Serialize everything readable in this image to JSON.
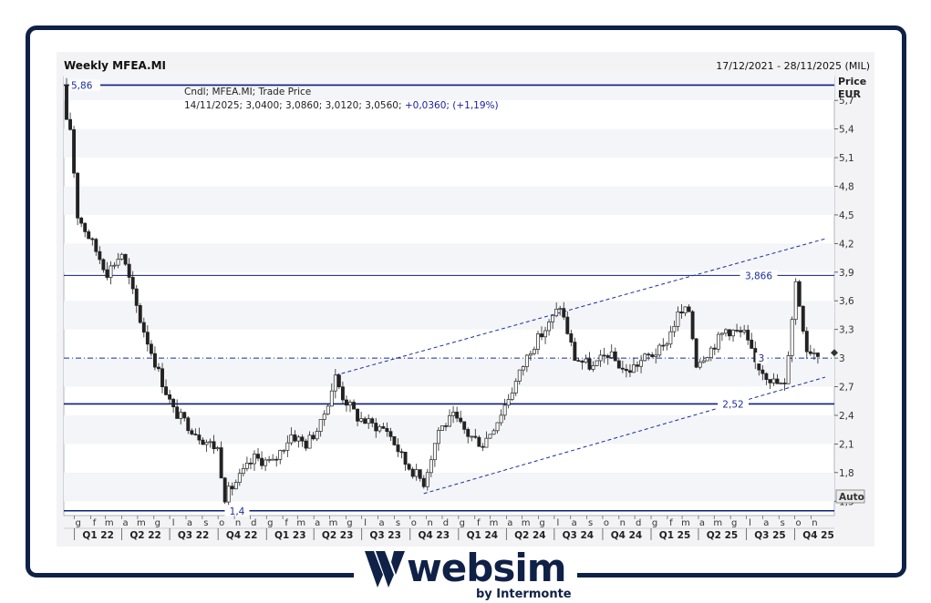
{
  "header": {
    "title": "Weekly MFEA.MI",
    "date_range": "17/12/2021 - 28/11/2025 (MIL)",
    "legend_line1": "Cndl; MFEA.MI; Trade Price",
    "legend_line2_prefix": "14/11/2025; 3,0400; 3,0860; 3,0120; 3,0560; ",
    "legend_line2_change": "+0,0360; (+1,19%)"
  },
  "axis": {
    "price_label": "Price",
    "currency_label": "EUR",
    "auto_label": "Auto",
    "y_ticks": [
      "5,7",
      "5,4",
      "5,1",
      "4,8",
      "4,5",
      "4,2",
      "3,9",
      "3,6",
      "3,3",
      "3",
      "2,7",
      "2,4",
      "2,1",
      "1,8",
      "1,5"
    ],
    "month_letters": [
      "g",
      "f",
      "m",
      "a",
      "m",
      "g",
      "l",
      "a",
      "s",
      "o",
      "n",
      "d",
      "g",
      "f",
      "m",
      "a",
      "m",
      "g",
      "l",
      "a",
      "s",
      "o",
      "n",
      "d",
      "g",
      "f",
      "m",
      "a",
      "m",
      "g",
      "l",
      "a",
      "s",
      "o",
      "n",
      "d",
      "g",
      "f",
      "m",
      "a",
      "m",
      "g",
      "l",
      "a",
      "s",
      "o",
      "n"
    ],
    "quarters": [
      "Q1 22",
      "Q2 22",
      "Q3 22",
      "Q4 22",
      "Q1 23",
      "Q2 23",
      "Q3 23",
      "Q4 23",
      "Q1 24",
      "Q2 24",
      "Q3 24",
      "Q4 24",
      "Q1 25",
      "Q2 25",
      "Q3 25",
      "Q4 25"
    ]
  },
  "chart_data": {
    "type": "candlestick",
    "title": "Weekly MFEA.MI",
    "ylabel": "Price EUR",
    "ylim": [
      1.35,
      5.95
    ],
    "date_range": [
      "17/12/2021",
      "28/11/2025"
    ],
    "last_candle": {
      "date": "14/11/2025",
      "open": 3.04,
      "high": 3.086,
      "low": 3.012,
      "close": 3.056,
      "change": 0.036,
      "change_pct": 1.19
    },
    "levels": [
      {
        "label": "5,86",
        "value": 5.86
      },
      {
        "label": "3,866",
        "value": 3.866
      },
      {
        "label": "3",
        "value": 3.0
      },
      {
        "label": "2,52",
        "value": 2.52
      },
      {
        "label": "1,4",
        "value": 1.4
      }
    ],
    "channel": {
      "upper": [
        {
          "date": "2023-05-12",
          "value": 2.82
        },
        {
          "date": "2025-11-28",
          "value": 4.25
        }
      ],
      "lower": [
        {
          "date": "2023-10-27",
          "value": 1.58
        },
        {
          "date": "2025-11-28",
          "value": 2.8
        }
      ]
    },
    "close_anchors": [
      [
        "2021-12-17",
        5.86
      ],
      [
        "2022-01-07",
        4.5
      ],
      [
        "2022-02-04",
        4.2
      ],
      [
        "2022-03-04",
        3.9
      ],
      [
        "2022-04-01",
        4.1
      ],
      [
        "2022-05-06",
        3.4
      ],
      [
        "2022-06-10",
        2.85
      ],
      [
        "2022-07-08",
        2.45
      ],
      [
        "2022-08-05",
        2.3
      ],
      [
        "2022-09-02",
        2.15
      ],
      [
        "2022-09-30",
        2.05
      ],
      [
        "2022-10-14",
        1.55
      ],
      [
        "2022-11-11",
        1.75
      ],
      [
        "2022-12-09",
        1.95
      ],
      [
        "2023-01-13",
        1.9
      ],
      [
        "2023-02-17",
        2.2
      ],
      [
        "2023-03-17",
        2.1
      ],
      [
        "2023-04-14",
        2.3
      ],
      [
        "2023-05-12",
        2.8
      ],
      [
        "2023-05-26",
        2.6
      ],
      [
        "2023-06-23",
        2.38
      ],
      [
        "2023-07-21",
        2.3
      ],
      [
        "2023-08-18",
        2.25
      ],
      [
        "2023-09-22",
        1.9
      ],
      [
        "2023-10-27",
        1.7
      ],
      [
        "2023-11-24",
        2.25
      ],
      [
        "2023-12-22",
        2.38
      ],
      [
        "2024-01-19",
        2.2
      ],
      [
        "2024-02-16",
        2.1
      ],
      [
        "2024-03-15",
        2.35
      ],
      [
        "2024-04-19",
        2.75
      ],
      [
        "2024-05-17",
        3.1
      ],
      [
        "2024-06-21",
        3.35
      ],
      [
        "2024-07-12",
        3.55
      ],
      [
        "2024-08-09",
        3.0
      ],
      [
        "2024-09-13",
        2.9
      ],
      [
        "2024-10-11",
        3.05
      ],
      [
        "2024-11-15",
        2.85
      ],
      [
        "2024-12-20",
        3.0
      ],
      [
        "2025-01-24",
        3.1
      ],
      [
        "2025-02-21",
        3.45
      ],
      [
        "2025-03-14",
        3.5
      ],
      [
        "2025-03-28",
        2.95
      ],
      [
        "2025-04-25",
        3.1
      ],
      [
        "2025-05-23",
        3.3
      ],
      [
        "2025-06-27",
        3.25
      ],
      [
        "2025-07-18",
        2.95
      ],
      [
        "2025-08-22",
        2.75
      ],
      [
        "2025-09-12",
        2.7
      ],
      [
        "2025-10-03",
        3.8
      ],
      [
        "2025-10-24",
        3.1
      ],
      [
        "2025-11-14",
        3.056
      ]
    ]
  }
}
